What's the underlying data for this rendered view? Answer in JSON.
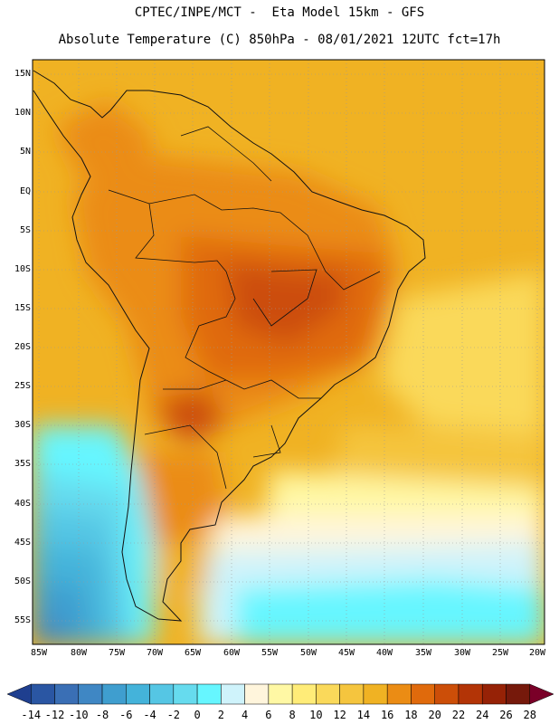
{
  "header": {
    "line1": "CPTEC/INPE/MCT -  Eta Model 15km - GFS",
    "line2": "Absolute Temperature (C) 850hPa - 08/01/2021 12UTC fct=17h"
  },
  "map": {
    "lat_labels": [
      "15N",
      "10N",
      "5N",
      "EQ",
      "5S",
      "10S",
      "15S",
      "20S",
      "25S",
      "30S",
      "35S",
      "40S",
      "45S",
      "50S",
      "55S"
    ],
    "lon_labels": [
      "85W",
      "80W",
      "75W",
      "70W",
      "65W",
      "60W",
      "55W",
      "50W",
      "45W",
      "40W",
      "35W",
      "30W",
      "25W",
      "20W"
    ]
  },
  "colorbar": {
    "labels": [
      "-14",
      "-12",
      "-10",
      "-8",
      "-6",
      "-4",
      "-2",
      "0",
      "2",
      "4",
      "6",
      "8",
      "10",
      "12",
      "14",
      "16",
      "18",
      "20",
      "22",
      "24",
      "26",
      "28"
    ],
    "colors": [
      "#1f3f8f",
      "#2a56a3",
      "#3a6fb5",
      "#3f87c4",
      "#3f9ecf",
      "#44b3da",
      "#55c6e4",
      "#66dbee",
      "#66f6ff",
      "#cff3fb",
      "#fff5dc",
      "#fff8a4",
      "#ffec78",
      "#fad95a",
      "#f5c53e",
      "#f0b223",
      "#eb8c14",
      "#e06a0c",
      "#cc4e08",
      "#b33406",
      "#962206",
      "#76190b",
      "#7a0028"
    ]
  },
  "palette": {
    "land_border": "#111111",
    "grid": "#999999"
  }
}
